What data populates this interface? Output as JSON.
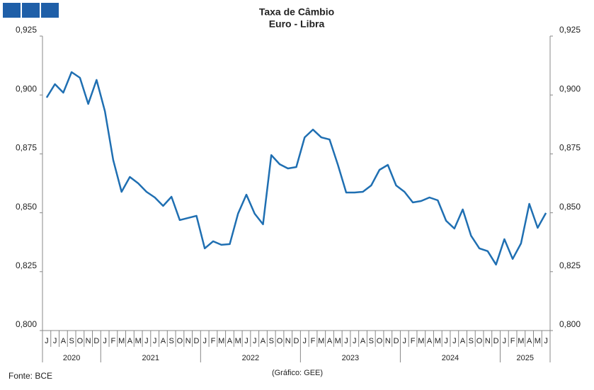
{
  "chart_data": {
    "type": "line",
    "title": "Taxa de Câmbio",
    "subtitle": "Euro - Libra",
    "categories": [
      "J",
      "J",
      "A",
      "S",
      "O",
      "N",
      "D",
      "J",
      "F",
      "M",
      "A",
      "M",
      "J",
      "J",
      "A",
      "S",
      "O",
      "N",
      "D",
      "J",
      "F",
      "M",
      "A",
      "M",
      "J",
      "J",
      "A",
      "S",
      "O",
      "N",
      "D",
      "J",
      "F",
      "M",
      "A",
      "M",
      "J",
      "J",
      "A",
      "S",
      "O",
      "N",
      "D",
      "J",
      "F",
      "M",
      "A",
      "M",
      "J",
      "J",
      "A",
      "S",
      "O",
      "N",
      "D",
      "J",
      "F",
      "M",
      "A",
      "M",
      "J"
    ],
    "years": [
      "2020",
      "2021",
      "2022",
      "2023",
      "2024",
      "2025"
    ],
    "series": [
      {
        "name": "Euro - Libra",
        "color": "#1f6fb2",
        "values": [
          0.8989,
          0.9046,
          0.901,
          0.9097,
          0.9073,
          0.8962,
          0.9064,
          0.8931,
          0.8724,
          0.8589,
          0.8652,
          0.8625,
          0.8589,
          0.8565,
          0.8529,
          0.8568,
          0.8469,
          0.8478,
          0.8487,
          0.8349,
          0.8379,
          0.8364,
          0.8367,
          0.8496,
          0.8577,
          0.8496,
          0.8451,
          0.8745,
          0.8706,
          0.8688,
          0.8694,
          0.882,
          0.8853,
          0.882,
          0.8811,
          0.8703,
          0.8586,
          0.8586,
          0.8589,
          0.8616,
          0.8682,
          0.8703,
          0.8616,
          0.8589,
          0.8544,
          0.855,
          0.8565,
          0.8553,
          0.8466,
          0.8433,
          0.8514,
          0.8403,
          0.8349,
          0.8337,
          0.828,
          0.8388,
          0.8304,
          0.837,
          0.8538,
          0.8436,
          0.8499
        ]
      }
    ],
    "ylim": [
      0.8,
      0.925
    ],
    "yticks": [
      {
        "value": 0.8,
        "label": "0,800"
      },
      {
        "value": 0.825,
        "label": "0,825"
      },
      {
        "value": 0.85,
        "label": "0,850"
      },
      {
        "value": 0.875,
        "label": "0,875"
      },
      {
        "value": 0.9,
        "label": "0,900"
      },
      {
        "value": 0.925,
        "label": "0,925"
      }
    ],
    "source": "Fonte: BCE",
    "credit": "(Gráfico: GEE)"
  }
}
